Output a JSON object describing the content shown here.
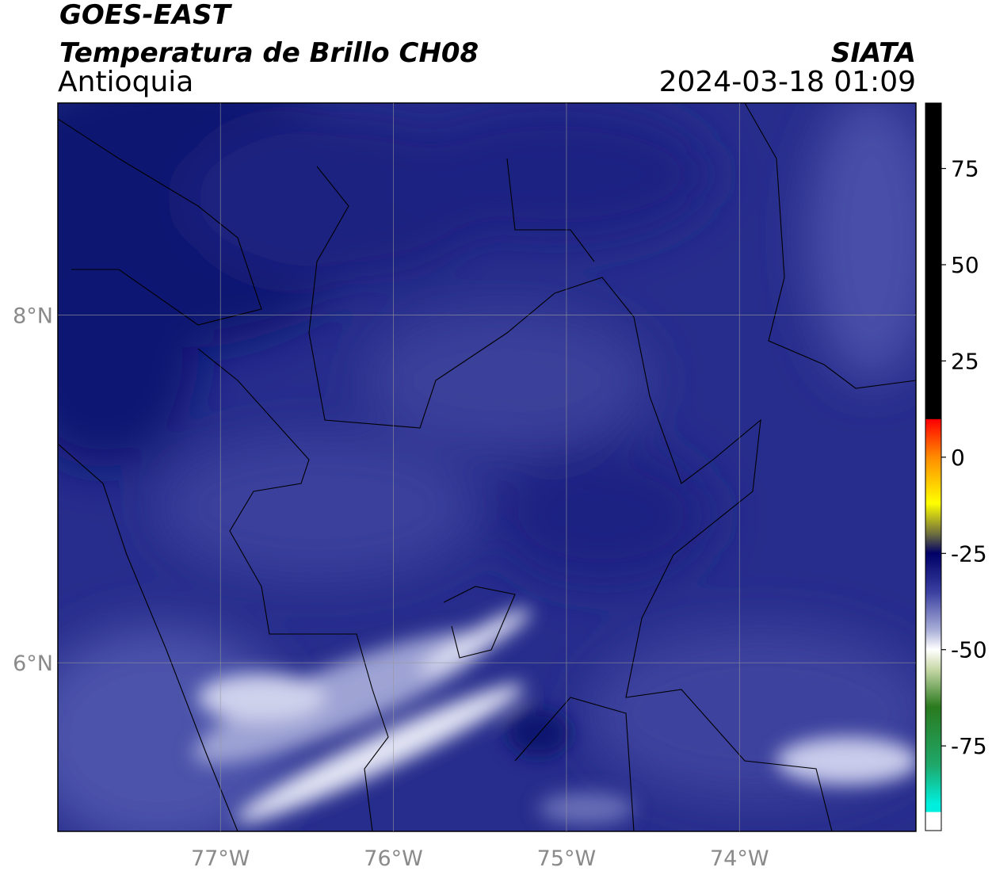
{
  "chart_data": {
    "type": "map",
    "title": "GOES-EAST",
    "subtitle": "Temperatura de Brillo CH08",
    "region": "Antioquia",
    "source": "SIATA",
    "datetime": "2024-03-18 01:09",
    "xlim": [
      -77.94,
      -72.98
    ],
    "ylim": [
      5.03,
      9.22
    ],
    "xticks": [
      {
        "value": -77,
        "label": "77°W"
      },
      {
        "value": -76,
        "label": "76°W"
      },
      {
        "value": -75,
        "label": "75°W"
      },
      {
        "value": -74,
        "label": "74°W"
      }
    ],
    "yticks": [
      {
        "value": 6,
        "label": "6°N"
      },
      {
        "value": 8,
        "label": "8°N"
      }
    ],
    "grid": true,
    "colorbar": {
      "lim": [
        -97,
        92
      ],
      "ticks": [
        75,
        50,
        25,
        0,
        -25,
        -50,
        -75
      ]
    }
  }
}
